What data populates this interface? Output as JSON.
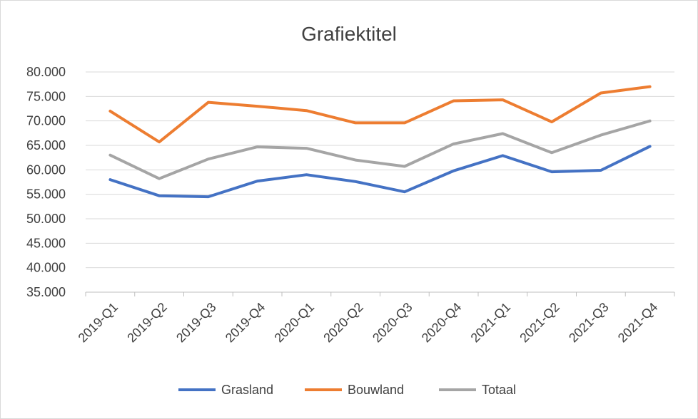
{
  "chart_data": {
    "type": "line",
    "title": "Grafiektitel",
    "xlabel": "",
    "ylabel": "",
    "categories": [
      "2019-Q1",
      "2019-Q2",
      "2019-Q3",
      "2019-Q4",
      "2020-Q1",
      "2020-Q2",
      "2020-Q3",
      "2020-Q4",
      "2021-Q1",
      "2021-Q2",
      "2021-Q3",
      "2021-Q4"
    ],
    "ylim": [
      35000,
      80000
    ],
    "yticks": [
      "35.000",
      "40.000",
      "45.000",
      "50.000",
      "55.000",
      "60.000",
      "65.000",
      "70.000",
      "75.000",
      "80.000"
    ],
    "grid": true,
    "legend_position": "bottom",
    "series": [
      {
        "name": "Grasland",
        "color": "#4472c4",
        "values": [
          58000,
          54700,
          54500,
          57700,
          59000,
          57600,
          55500,
          59800,
          62900,
          59600,
          59900,
          64800
        ]
      },
      {
        "name": "Bouwland",
        "color": "#ed7d31",
        "values": [
          72000,
          65700,
          73800,
          73000,
          72100,
          69600,
          69600,
          74100,
          74300,
          69800,
          75700,
          77000
        ]
      },
      {
        "name": "Totaal",
        "color": "#a5a5a5",
        "values": [
          63000,
          58200,
          62200,
          64700,
          64400,
          62000,
          60700,
          65300,
          67400,
          63500,
          67100,
          70000
        ]
      }
    ]
  }
}
